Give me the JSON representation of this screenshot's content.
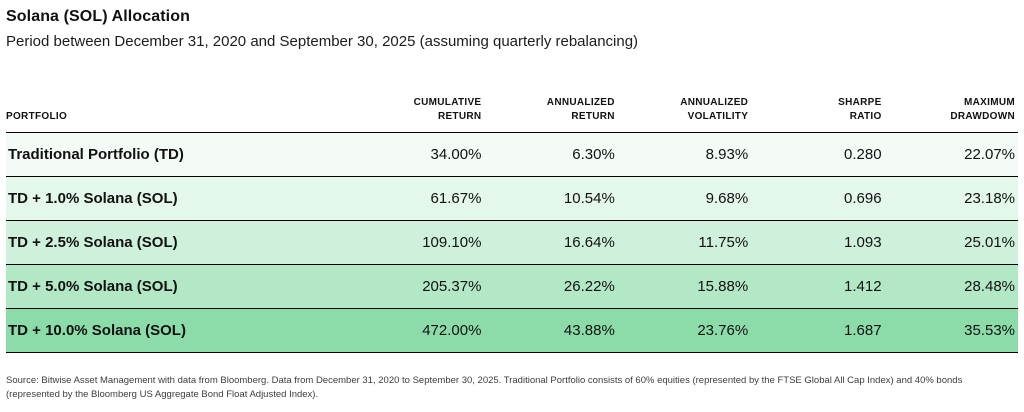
{
  "header": {
    "title": "Solana (SOL) Allocation",
    "subtitle": "Period between December 31, 2020 and September 30, 2025 (assuming quarterly rebalancing)"
  },
  "table": {
    "headers": [
      {
        "line1": "PORTFOLIO",
        "line2": ""
      },
      {
        "line1": "CUMULATIVE",
        "line2": "RETURN"
      },
      {
        "line1": "ANNUALIZED",
        "line2": "RETURN"
      },
      {
        "line1": "ANNUALIZED",
        "line2": "VOLATILITY"
      },
      {
        "line1": "SHARPE",
        "line2": "RATIO"
      },
      {
        "line1": "MAXIMUM",
        "line2": "DRAWDOWN"
      }
    ],
    "row_colors": [
      "#f4fbf6",
      "#e3f7ea",
      "#cff1db",
      "#b3e8c7",
      "#8cdcaa"
    ]
  },
  "chart_data": {
    "type": "table",
    "title": "Solana (SOL) Allocation",
    "subtitle": "Period between December 31, 2020 and September 30, 2025 (assuming quarterly rebalancing)",
    "columns": [
      "Portfolio",
      "Cumulative Return",
      "Annualized Return",
      "Annualized Volatility",
      "Sharpe Ratio",
      "Maximum Drawdown"
    ],
    "rows": [
      [
        "Traditional Portfolio (TD)",
        "34.00%",
        "6.30%",
        "8.93%",
        "0.280",
        "22.07%"
      ],
      [
        "TD + 1.0% Solana (SOL)",
        "61.67%",
        "10.54%",
        "9.68%",
        "0.696",
        "23.18%"
      ],
      [
        "TD + 2.5% Solana (SOL)",
        "109.10%",
        "16.64%",
        "11.75%",
        "1.093",
        "25.01%"
      ],
      [
        "TD + 5.0% Solana (SOL)",
        "205.37%",
        "26.22%",
        "15.88%",
        "1.412",
        "28.48%"
      ],
      [
        "TD + 10.0% Solana (SOL)",
        "472.00%",
        "43.88%",
        "23.76%",
        "1.687",
        "35.53%"
      ]
    ]
  },
  "footer": {
    "source_text": "Source: Bitwise Asset Management with data from Bloomberg. Data from December 31, 2020 to September 30, 2025. Traditional Portfolio consists of 60% equities (represented by the FTSE Global All Cap Index) and 40% bonds (represented by the Bloomberg US Aggregate Bond Float Adjusted Index)."
  }
}
